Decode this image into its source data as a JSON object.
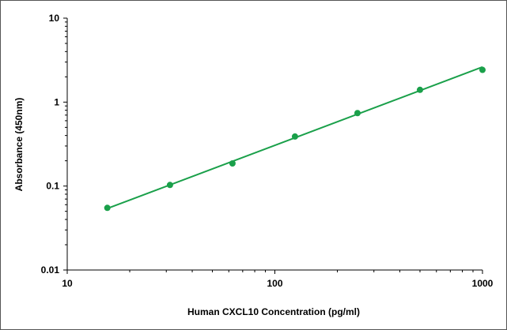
{
  "chart_data": {
    "type": "scatter",
    "title": "",
    "xlabel": "Human CXCL10 Concentration (pg/ml)",
    "ylabel": "Absorbance (450nm)",
    "xscale": "log",
    "yscale": "log",
    "xlim": [
      10,
      1000
    ],
    "ylim": [
      0.01,
      10
    ],
    "x_ticks": [
      "10",
      "100",
      "1000"
    ],
    "y_ticks": [
      "10",
      "1",
      "0.1",
      "0.01"
    ],
    "grid": false,
    "legend": "none",
    "colors": {
      "series": "#1aa04a",
      "axis": "#000000"
    },
    "series": [
      {
        "points": [
          {
            "x": 15.6,
            "y": 0.055
          },
          {
            "x": 31.25,
            "y": 0.103
          },
          {
            "x": 62.5,
            "y": 0.186
          },
          {
            "x": 125,
            "y": 0.389
          },
          {
            "x": 250,
            "y": 0.74
          },
          {
            "x": 500,
            "y": 1.4
          },
          {
            "x": 1000,
            "y": 2.42
          }
        ]
      }
    ],
    "fit_line": {
      "x": [
        15.6,
        1000
      ],
      "y": [
        0.054,
        2.62
      ]
    }
  }
}
